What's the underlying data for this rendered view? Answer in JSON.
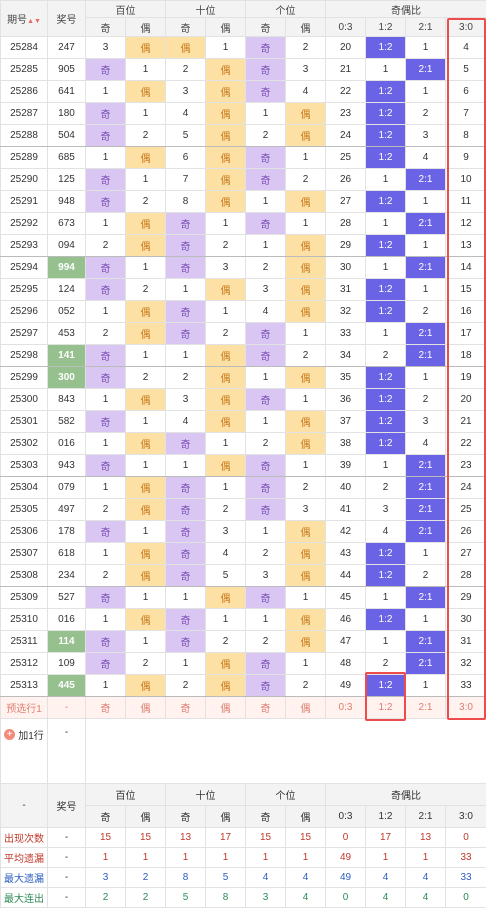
{
  "header": {
    "col_period": "期号",
    "col_prize": "奖号",
    "group_hundreds": "百位",
    "group_tens": "十位",
    "group_units": "个位",
    "group_ratio": "奇偶比",
    "odd": "奇",
    "even": "偶",
    "ratios": [
      "0:3",
      "1:2",
      "2:1",
      "3:0"
    ]
  },
  "rows": [
    {
      "p": "25284",
      "n": "247",
      "h": [
        "3",
        "偶"
      ],
      "t": [
        "偶",
        "1"
      ],
      "u": [
        "奇",
        "2"
      ],
      "r": [
        "20",
        "1:2",
        "1",
        "4"
      ],
      "hl": false
    },
    {
      "p": "25285",
      "n": "905",
      "h": [
        "奇",
        "1"
      ],
      "t": [
        "2",
        "偶"
      ],
      "u": [
        "奇",
        "3"
      ],
      "r": [
        "21",
        "1",
        "2:1",
        "5"
      ],
      "hl": false
    },
    {
      "p": "25286",
      "n": "641",
      "h": [
        "1",
        "偶"
      ],
      "t": [
        "3",
        "偶"
      ],
      "u": [
        "奇",
        "4"
      ],
      "r": [
        "22",
        "1:2",
        "1",
        "6"
      ],
      "hl": false
    },
    {
      "p": "25287",
      "n": "180",
      "h": [
        "奇",
        "1"
      ],
      "t": [
        "4",
        "偶"
      ],
      "u": [
        "1",
        "偶"
      ],
      "r": [
        "23",
        "1:2",
        "2",
        "7"
      ],
      "hl": false
    },
    {
      "p": "25288",
      "n": "504",
      "h": [
        "奇",
        "2"
      ],
      "t": [
        "5",
        "偶"
      ],
      "u": [
        "2",
        "偶"
      ],
      "r": [
        "24",
        "1:2",
        "3",
        "8"
      ],
      "hl": false
    },
    {
      "p": "25289",
      "n": "685",
      "h": [
        "1",
        "偶"
      ],
      "t": [
        "6",
        "偶"
      ],
      "u": [
        "奇",
        "1"
      ],
      "r": [
        "25",
        "1:2",
        "4",
        "9"
      ],
      "hl": false
    },
    {
      "p": "25290",
      "n": "125",
      "h": [
        "奇",
        "1"
      ],
      "t": [
        "7",
        "偶"
      ],
      "u": [
        "奇",
        "2"
      ],
      "r": [
        "26",
        "1",
        "2:1",
        "10"
      ],
      "hl": false
    },
    {
      "p": "25291",
      "n": "948",
      "h": [
        "奇",
        "2"
      ],
      "t": [
        "8",
        "偶"
      ],
      "u": [
        "1",
        "偶"
      ],
      "r": [
        "27",
        "1:2",
        "1",
        "11"
      ],
      "hl": false
    },
    {
      "p": "25292",
      "n": "673",
      "h": [
        "1",
        "偶"
      ],
      "t": [
        "奇",
        "1"
      ],
      "u": [
        "奇",
        "1"
      ],
      "r": [
        "28",
        "1",
        "2:1",
        "12"
      ],
      "hl": false
    },
    {
      "p": "25293",
      "n": "094",
      "h": [
        "2",
        "偶"
      ],
      "t": [
        "奇",
        "2"
      ],
      "u": [
        "1",
        "偶"
      ],
      "r": [
        "29",
        "1:2",
        "1",
        "13"
      ],
      "hl": false
    },
    {
      "p": "25294",
      "n": "994",
      "h": [
        "奇",
        "1"
      ],
      "t": [
        "奇",
        "3"
      ],
      "u": [
        "2",
        "偶"
      ],
      "r": [
        "30",
        "1",
        "2:1",
        "14"
      ],
      "hl": true
    },
    {
      "p": "25295",
      "n": "124",
      "h": [
        "奇",
        "2"
      ],
      "t": [
        "1",
        "偶"
      ],
      "u": [
        "3",
        "偶"
      ],
      "r": [
        "31",
        "1:2",
        "1",
        "15"
      ],
      "hl": false
    },
    {
      "p": "25296",
      "n": "052",
      "h": [
        "1",
        "偶"
      ],
      "t": [
        "奇",
        "1"
      ],
      "u": [
        "4",
        "偶"
      ],
      "r": [
        "32",
        "1:2",
        "2",
        "16"
      ],
      "hl": false
    },
    {
      "p": "25297",
      "n": "453",
      "h": [
        "2",
        "偶"
      ],
      "t": [
        "奇",
        "2"
      ],
      "u": [
        "奇",
        "1"
      ],
      "r": [
        "33",
        "1",
        "2:1",
        "17"
      ],
      "hl": false
    },
    {
      "p": "25298",
      "n": "141",
      "h": [
        "奇",
        "1"
      ],
      "t": [
        "1",
        "偶"
      ],
      "u": [
        "奇",
        "2"
      ],
      "r": [
        "34",
        "2",
        "2:1",
        "18"
      ],
      "hl": true
    },
    {
      "p": "25299",
      "n": "300",
      "h": [
        "奇",
        "2"
      ],
      "t": [
        "2",
        "偶"
      ],
      "u": [
        "1",
        "偶"
      ],
      "r": [
        "35",
        "1:2",
        "1",
        "19"
      ],
      "hl": true
    },
    {
      "p": "25300",
      "n": "843",
      "h": [
        "1",
        "偶"
      ],
      "t": [
        "3",
        "偶"
      ],
      "u": [
        "奇",
        "1"
      ],
      "r": [
        "36",
        "1:2",
        "2",
        "20"
      ],
      "hl": false
    },
    {
      "p": "25301",
      "n": "582",
      "h": [
        "奇",
        "1"
      ],
      "t": [
        "4",
        "偶"
      ],
      "u": [
        "1",
        "偶"
      ],
      "r": [
        "37",
        "1:2",
        "3",
        "21"
      ],
      "hl": false
    },
    {
      "p": "25302",
      "n": "016",
      "h": [
        "1",
        "偶"
      ],
      "t": [
        "奇",
        "1"
      ],
      "u": [
        "2",
        "偶"
      ],
      "r": [
        "38",
        "1:2",
        "4",
        "22"
      ],
      "hl": false
    },
    {
      "p": "25303",
      "n": "943",
      "h": [
        "奇",
        "1"
      ],
      "t": [
        "1",
        "偶"
      ],
      "u": [
        "奇",
        "1"
      ],
      "r": [
        "39",
        "1",
        "2:1",
        "23"
      ],
      "hl": false
    },
    {
      "p": "25304",
      "n": "079",
      "h": [
        "1",
        "偶"
      ],
      "t": [
        "奇",
        "1"
      ],
      "u": [
        "奇",
        "2"
      ],
      "r": [
        "40",
        "2",
        "2:1",
        "24"
      ],
      "hl": false
    },
    {
      "p": "25305",
      "n": "497",
      "h": [
        "2",
        "偶"
      ],
      "t": [
        "奇",
        "2"
      ],
      "u": [
        "奇",
        "3"
      ],
      "r": [
        "41",
        "3",
        "2:1",
        "25"
      ],
      "hl": false
    },
    {
      "p": "25306",
      "n": "178",
      "h": [
        "奇",
        "1"
      ],
      "t": [
        "奇",
        "3"
      ],
      "u": [
        "1",
        "偶"
      ],
      "r": [
        "42",
        "4",
        "2:1",
        "26"
      ],
      "hl": false
    },
    {
      "p": "25307",
      "n": "618",
      "h": [
        "1",
        "偶"
      ],
      "t": [
        "奇",
        "4"
      ],
      "u": [
        "2",
        "偶"
      ],
      "r": [
        "43",
        "1:2",
        "1",
        "27"
      ],
      "hl": false
    },
    {
      "p": "25308",
      "n": "234",
      "h": [
        "2",
        "偶"
      ],
      "t": [
        "奇",
        "5"
      ],
      "u": [
        "3",
        "偶"
      ],
      "r": [
        "44",
        "1:2",
        "2",
        "28"
      ],
      "hl": false
    },
    {
      "p": "25309",
      "n": "527",
      "h": [
        "奇",
        "1"
      ],
      "t": [
        "1",
        "偶"
      ],
      "u": [
        "奇",
        "1"
      ],
      "r": [
        "45",
        "1",
        "2:1",
        "29"
      ],
      "hl": false
    },
    {
      "p": "25310",
      "n": "016",
      "h": [
        "1",
        "偶"
      ],
      "t": [
        "奇",
        "1"
      ],
      "u": [
        "1",
        "偶"
      ],
      "r": [
        "46",
        "1:2",
        "1",
        "30"
      ],
      "hl": false
    },
    {
      "p": "25311",
      "n": "114",
      "h": [
        "奇",
        "1"
      ],
      "t": [
        "奇",
        "2"
      ],
      "u": [
        "2",
        "偶"
      ],
      "r": [
        "47",
        "1",
        "2:1",
        "31"
      ],
      "hl": true
    },
    {
      "p": "25312",
      "n": "109",
      "h": [
        "奇",
        "2"
      ],
      "t": [
        "1",
        "偶"
      ],
      "u": [
        "奇",
        "1"
      ],
      "r": [
        "48",
        "2",
        "2:1",
        "32"
      ],
      "hl": false
    },
    {
      "p": "25313",
      "n": "445",
      "h": [
        "1",
        "偶"
      ],
      "t": [
        "2",
        "偶"
      ],
      "u": [
        "奇",
        "2"
      ],
      "r": [
        "49",
        "1:2",
        "1",
        "33"
      ],
      "hl": true
    }
  ],
  "predict": {
    "label": "预选行1",
    "prize": "-",
    "cells": [
      "奇",
      "偶",
      "奇",
      "偶",
      "奇",
      "偶",
      "0:3",
      "1:2",
      "2:1",
      "3:0"
    ]
  },
  "add_row": {
    "icon": "plus-icon",
    "label": "加1行",
    "prize": "-"
  },
  "footer_header": {
    "dash": "-",
    "prize": "奖号"
  },
  "stats": [
    {
      "label": "出现次数",
      "prize": "-",
      "vals": [
        "15",
        "15",
        "13",
        "17",
        "15",
        "15",
        "0",
        "17",
        "13",
        "0"
      ]
    },
    {
      "label": "平均遗漏",
      "prize": "-",
      "vals": [
        "1",
        "1",
        "1",
        "1",
        "1",
        "1",
        "49",
        "1",
        "1",
        "33"
      ]
    },
    {
      "label": "最大遗漏",
      "prize": "-",
      "vals": [
        "3",
        "2",
        "8",
        "5",
        "4",
        "4",
        "49",
        "4",
        "4",
        "33"
      ]
    },
    {
      "label": "最大连出",
      "prize": "-",
      "vals": [
        "2",
        "2",
        "5",
        "8",
        "3",
        "4",
        "0",
        "4",
        "4",
        "0"
      ]
    }
  ],
  "colors": {
    "odd": "#d9c6f3",
    "even": "#fde0a3",
    "ratio_hit": "#6b63e6",
    "prize_highlight": "#96c08e",
    "box": "#ee4c4c"
  },
  "sort_icon": "sort-arrows-icon"
}
